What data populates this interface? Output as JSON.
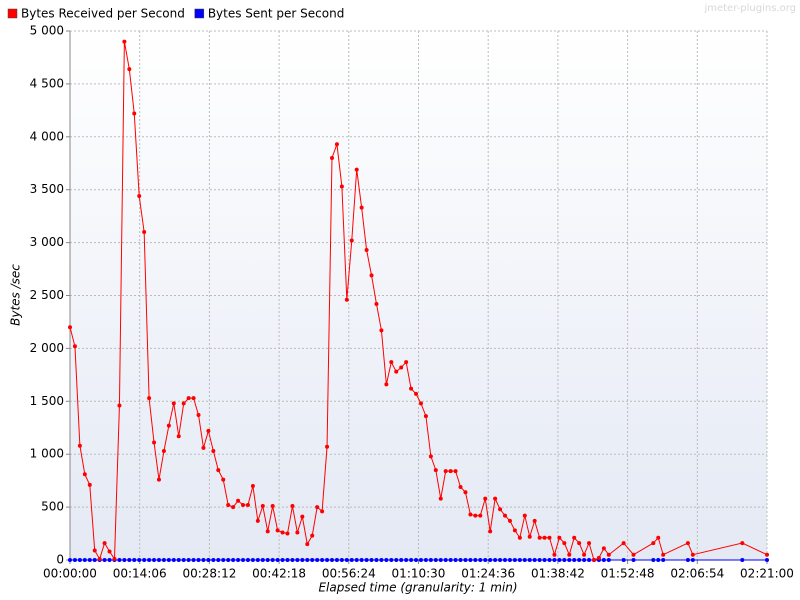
{
  "chart_data": {
    "type": "line",
    "watermark": "jmeter-plugins.org",
    "xlabel": "Elapsed time (granularity: 1 min)",
    "ylabel": "Bytes /sec",
    "x": [
      0,
      1,
      2,
      3,
      4,
      5,
      6,
      7,
      8,
      9,
      10,
      11,
      12,
      13,
      14,
      15,
      16,
      17,
      18,
      19,
      20,
      21,
      22,
      23,
      24,
      25,
      26,
      27,
      28,
      29,
      30,
      31,
      32,
      33,
      34,
      35,
      36,
      37,
      38,
      39,
      40,
      41,
      42,
      43,
      44,
      45,
      46,
      47,
      48,
      49,
      50,
      51,
      52,
      53,
      54,
      55,
      56,
      57,
      58,
      59,
      60,
      61,
      62,
      63,
      64,
      65,
      66,
      67,
      68,
      69,
      70,
      71,
      72,
      73,
      74,
      75,
      76,
      77,
      78,
      79,
      80,
      81,
      82,
      83,
      84,
      85,
      86,
      87,
      88,
      89,
      90,
      91,
      92,
      93,
      94,
      95,
      96,
      97,
      98,
      99,
      100,
      101,
      102,
      103,
      104,
      105,
      106,
      107,
      108,
      109,
      112,
      114,
      118,
      119,
      120,
      125,
      126,
      136,
      141
    ],
    "series": [
      {
        "name": "Bytes Received per Second",
        "color": "#ff0000",
        "values": [
          2200,
          2020,
          1080,
          810,
          710,
          90,
          10,
          160,
          80,
          10,
          1460,
          4900,
          4640,
          4220,
          3440,
          3100,
          1530,
          1110,
          760,
          1030,
          1270,
          1480,
          1170,
          1480,
          1530,
          1530,
          1370,
          1060,
          1220,
          1030,
          850,
          760,
          520,
          500,
          560,
          520,
          520,
          700,
          370,
          510,
          270,
          510,
          280,
          260,
          250,
          510,
          260,
          410,
          150,
          230,
          500,
          460,
          1070,
          3800,
          3930,
          3530,
          2460,
          3020,
          3690,
          3330,
          2930,
          2690,
          2420,
          2170,
          1660,
          1870,
          1780,
          1820,
          1870,
          1620,
          1570,
          1480,
          1360,
          980,
          850,
          580,
          840,
          840,
          840,
          690,
          640,
          430,
          420,
          420,
          580,
          270,
          580,
          480,
          420,
          370,
          280,
          210,
          420,
          220,
          370,
          210,
          210,
          210,
          50,
          210,
          160,
          50,
          210,
          160,
          50,
          160,
          0,
          20,
          110,
          50,
          160,
          50,
          160,
          210,
          50,
          160,
          50,
          160,
          50
        ]
      },
      {
        "name": "Bytes Sent per Second",
        "color": "#0000ff",
        "values": [
          0,
          0,
          0,
          0,
          0,
          0,
          0,
          0,
          0,
          0,
          0,
          0,
          0,
          0,
          0,
          0,
          0,
          0,
          0,
          0,
          0,
          0,
          0,
          0,
          0,
          0,
          0,
          0,
          0,
          0,
          0,
          0,
          0,
          0,
          0,
          0,
          0,
          0,
          0,
          0,
          0,
          0,
          0,
          0,
          0,
          0,
          0,
          0,
          0,
          0,
          0,
          0,
          0,
          0,
          0,
          0,
          0,
          0,
          0,
          0,
          0,
          0,
          0,
          0,
          0,
          0,
          0,
          0,
          0,
          0,
          0,
          0,
          0,
          0,
          0,
          0,
          0,
          0,
          0,
          0,
          0,
          0,
          0,
          0,
          0,
          0,
          0,
          0,
          0,
          0,
          0,
          0,
          0,
          0,
          0,
          0,
          0,
          0,
          0,
          0,
          0,
          0,
          0,
          0,
          0,
          0,
          0,
          0,
          0,
          0,
          0,
          0,
          0,
          0,
          0,
          0,
          0,
          0,
          0
        ]
      }
    ],
    "xlim": [
      0,
      141
    ],
    "xticks": [
      {
        "value": 0,
        "label": "00:00:00"
      },
      {
        "value": 14.1,
        "label": "00:14:06"
      },
      {
        "value": 28.2,
        "label": "00:28:12"
      },
      {
        "value": 42.3,
        "label": "00:42:18"
      },
      {
        "value": 56.4,
        "label": "00:56:24"
      },
      {
        "value": 70.5,
        "label": "01:10:30"
      },
      {
        "value": 84.6,
        "label": "01:24:36"
      },
      {
        "value": 98.7,
        "label": "01:38:42"
      },
      {
        "value": 112.8,
        "label": "01:52:48"
      },
      {
        "value": 126.9,
        "label": "02:06:54"
      },
      {
        "value": 141,
        "label": "02:21:00"
      }
    ],
    "ylim": [
      0,
      5000
    ],
    "yticks": [
      0,
      500,
      {
        "value": 1000,
        "label": "1 000"
      },
      {
        "value": 1500,
        "label": "1 500"
      },
      {
        "value": 2000,
        "label": "2 000"
      },
      {
        "value": 2500,
        "label": "2 500"
      },
      {
        "value": 3000,
        "label": "3 000"
      },
      {
        "value": 3500,
        "label": "3 500"
      },
      {
        "value": 4000,
        "label": "4 000"
      },
      {
        "value": 4500,
        "label": "4 500"
      },
      {
        "value": 5000,
        "label": "5 000"
      }
    ],
    "grid": true
  }
}
